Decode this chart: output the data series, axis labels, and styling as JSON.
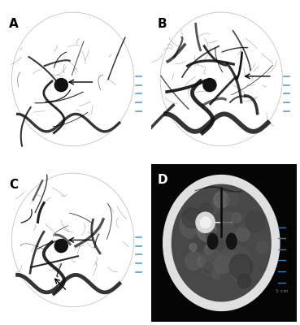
{
  "figure_size": [
    3.69,
    4.0
  ],
  "dpi": 100,
  "background_color": "#ffffff",
  "panel_labels": [
    "A",
    "B",
    "C",
    "D"
  ],
  "border_color": "#cccccc",
  "panel_bg_A": "#b8b8b8",
  "panel_bg_B": "#a8a8a8",
  "panel_bg_C": "#b4b4b4",
  "panel_bg_D": "#0a0a0a",
  "scale_bar_color": "#4488cc"
}
